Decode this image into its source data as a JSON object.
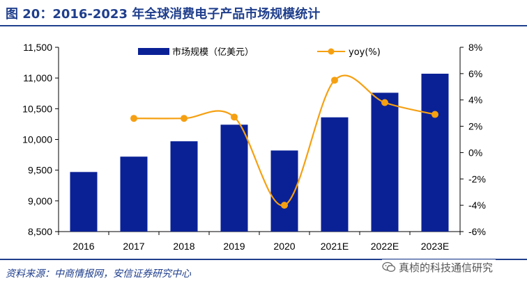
{
  "header": {
    "title": "图 20：2016-2023 年全球消费电子产品市场规模统计"
  },
  "footer": {
    "source": "资料来源：中商情报网，安信证券研究中心",
    "watermark": "真桢的科技通信研究"
  },
  "icons": {
    "watermark_icon": "wechat-icon"
  },
  "colors": {
    "bar": "#0a2196",
    "line": "#f5a012",
    "title": "#1f3e8c"
  },
  "chart_data": {
    "type": "bar",
    "categories": [
      "2016",
      "2017",
      "2018",
      "2019",
      "2020",
      "2021E",
      "2022E",
      "2023E"
    ],
    "series": [
      {
        "name": "市场规模（亿美元）",
        "type": "bar",
        "axis": "left",
        "values": [
          9470,
          9720,
          9970,
          10240,
          9820,
          10360,
          10760,
          11070
        ]
      },
      {
        "name": "yoy(%)",
        "type": "line",
        "axis": "right",
        "smooth": true,
        "values": [
          null,
          2.6,
          2.6,
          2.7,
          -4.0,
          5.5,
          3.8,
          2.9
        ]
      }
    ],
    "y_left": {
      "min": 8500,
      "max": 11500,
      "ticks": [
        "8,500",
        "9,000",
        "9,500",
        "10,000",
        "10,500",
        "11,000",
        "11,500"
      ],
      "tick_values": [
        8500,
        9000,
        9500,
        10000,
        10500,
        11000,
        11500
      ]
    },
    "y_right": {
      "min": -6,
      "max": 8,
      "ticks": [
        "-6%",
        "-4%",
        "-2%",
        "0%",
        "2%",
        "4%",
        "6%",
        "8%"
      ],
      "tick_values": [
        -6,
        -4,
        -2,
        0,
        2,
        4,
        6,
        8
      ]
    },
    "grid": false,
    "legend_position": "top"
  }
}
